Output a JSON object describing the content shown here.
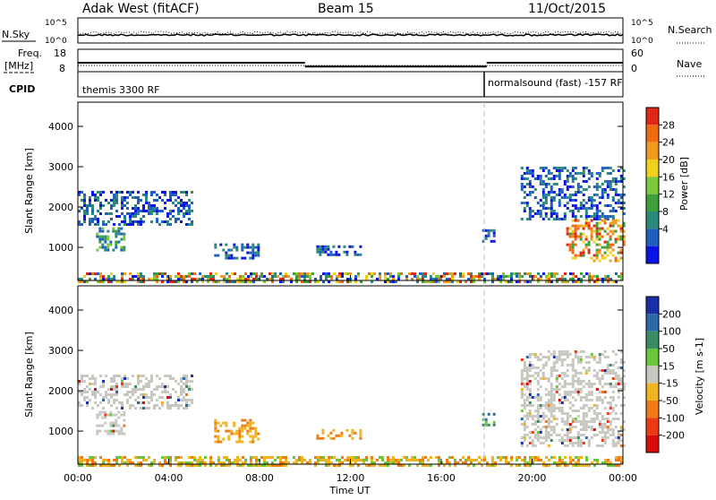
{
  "header": {
    "station": "Adak West (fitACF)",
    "beam": "Beam 15",
    "date": "11/Oct/2015"
  },
  "top_panels": {
    "nsky_label": "N.Sky",
    "nsky_ticks": [
      "10^5",
      "10^0"
    ],
    "nsearch_label": "N.Search",
    "nsearch_ticks": [
      "10^5",
      "10^0"
    ],
    "freq_label": "Freq.",
    "freq_unit": "[MHz]",
    "freq_ticks": [
      "18",
      "8"
    ],
    "nave_label": "Nave",
    "nave_ticks": [
      "60",
      "0"
    ],
    "cpid_label": "CPID",
    "cpid_segments": [
      {
        "label": "themis 3300 RF",
        "start_hour": 0,
        "end_hour": 18
      },
      {
        "label": "normalsound (fast) -157 RF",
        "start_hour": 18,
        "end_hour": 24
      }
    ],
    "freq_steps": [
      {
        "start_hour": 0,
        "end_hour": 10,
        "mhz": 12.0
      },
      {
        "start_hour": 10,
        "end_hour": 18,
        "mhz": 10.3
      },
      {
        "start_hour": 18,
        "end_hour": 24,
        "mhz": 12.0
      }
    ]
  },
  "axes": {
    "ylabel": "Slant Range [km]",
    "xlabel": "Time UT",
    "y_ticks": [
      "1000",
      "2000",
      "3000",
      "4000"
    ],
    "x_ticks": [
      "00:00",
      "04:00",
      "08:00",
      "12:00",
      "16:00",
      "20:00",
      "00:00"
    ]
  },
  "power_scale": {
    "label": "Power [dB]",
    "ticks": [
      "4",
      "8",
      "12",
      "16",
      "20",
      "24",
      "28"
    ],
    "colors": [
      "#0a14e6",
      "#1f5fc0",
      "#2c8a7a",
      "#3ea03a",
      "#7cc83c",
      "#f0d21e",
      "#f09a1e",
      "#f06a14",
      "#e02814"
    ]
  },
  "velocity_scale": {
    "label": "Velocity [m s-1]",
    "ticks": [
      "200",
      "100",
      "50",
      "15",
      "-15",
      "-50",
      "-100",
      "-200"
    ],
    "colors": [
      "#1a2ea8",
      "#2c6aa6",
      "#3a8c62",
      "#6ac63a",
      "#c8c8c0",
      "#f0b420",
      "#f07a14",
      "#ee3a14",
      "#d80c0c"
    ],
    "ground_color": "#c8c8c0"
  },
  "chart_data": [
    {
      "type": "heatmap",
      "title": "Power [dB]",
      "xlabel": "Time UT",
      "ylabel": "Slant Range [km]",
      "xlim": [
        0,
        24
      ],
      "ylim": [
        180,
        4600
      ],
      "regions": [
        {
          "t0": 0.0,
          "t1": 5.0,
          "r0": 1550,
          "r1": 2400,
          "level": "low"
        },
        {
          "t0": 0.8,
          "t1": 2.0,
          "r0": 950,
          "r1": 1500,
          "level": "mid"
        },
        {
          "t0": 6.0,
          "t1": 8.0,
          "r0": 750,
          "r1": 1100,
          "level": "low"
        },
        {
          "t0": 10.5,
          "t1": 12.5,
          "r0": 850,
          "r1": 1050,
          "level": "low"
        },
        {
          "t0": 17.8,
          "t1": 18.3,
          "r0": 1150,
          "r1": 1450,
          "level": "low"
        },
        {
          "t0": 19.5,
          "t1": 24.0,
          "r0": 1700,
          "r1": 3000,
          "level": "low"
        },
        {
          "t0": 21.5,
          "t1": 24.0,
          "r0": 650,
          "r1": 1700,
          "level": "high"
        },
        {
          "t0": 0.0,
          "t1": 24.0,
          "r0": 180,
          "r1": 380,
          "level": "mixed"
        }
      ]
    },
    {
      "type": "heatmap",
      "title": "Velocity [m s-1]",
      "xlabel": "Time UT",
      "ylabel": "Slant Range [km]",
      "xlim": [
        0,
        24
      ],
      "ylim": [
        180,
        4600
      ],
      "regions": [
        {
          "t0": 0.0,
          "t1": 5.0,
          "r0": 1550,
          "r1": 2400,
          "level": "ground"
        },
        {
          "t0": 0.8,
          "t1": 2.0,
          "r0": 950,
          "r1": 1500,
          "level": "ground"
        },
        {
          "t0": 6.0,
          "t1": 8.0,
          "r0": 750,
          "r1": 1300,
          "level": "neg"
        },
        {
          "t0": 10.5,
          "t1": 12.5,
          "r0": 850,
          "r1": 1050,
          "level": "neg"
        },
        {
          "t0": 17.8,
          "t1": 18.3,
          "r0": 1150,
          "r1": 1450,
          "level": "pos"
        },
        {
          "t0": 19.5,
          "t1": 24.0,
          "r0": 650,
          "r1": 3000,
          "level": "ground"
        },
        {
          "t0": 0.0,
          "t1": 24.0,
          "r0": 180,
          "r1": 380,
          "level": "neg_low"
        }
      ]
    }
  ]
}
